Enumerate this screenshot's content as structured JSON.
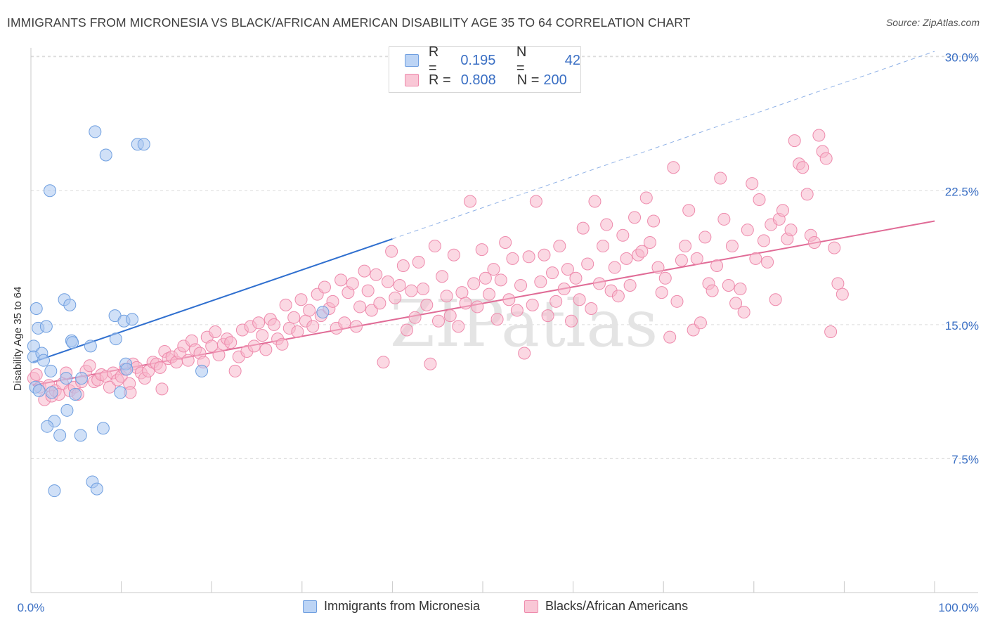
{
  "header": {
    "title": "IMMIGRANTS FROM MICRONESIA VS BLACK/AFRICAN AMERICAN DISABILITY AGE 35 TO 64 CORRELATION CHART",
    "source": "Source: ZipAtlas.com"
  },
  "watermark": "ZIPatlas",
  "legend": {
    "rows": [
      {
        "r_label": "R =",
        "r_value": "0.195",
        "n_label": "N =",
        "n_value": "42",
        "color": "#a9c7f0",
        "edge": "#6f9fe0"
      },
      {
        "r_label": "R =",
        "r_value": "0.808",
        "n_label": "N =",
        "n_value": "200",
        "color": "#f7b8cc",
        "edge": "#ee8aac"
      }
    ]
  },
  "chart_data": {
    "type": "scatter",
    "title": "IMMIGRANTS FROM MICRONESIA VS BLACK/AFRICAN AMERICAN DISABILITY AGE 35 TO 64 CORRELATION CHART",
    "xlabel": "",
    "ylabel": "Disability Age 35 to 64",
    "xlim": [
      0,
      100
    ],
    "ylim": [
      0,
      30.5
    ],
    "x_tick_labels": [
      "0.0%",
      "100.0%"
    ],
    "y_tick_labels": [
      "7.5%",
      "15.0%",
      "22.5%",
      "30.0%"
    ],
    "y_ticks": [
      7.5,
      15.0,
      22.5,
      30.0
    ],
    "grid": true,
    "legend_position": "bottom-center",
    "series": [
      {
        "name": "Immigrants from Micronesia",
        "color": "#a9c7f0",
        "edge": "#6f9fe0",
        "line_color": "#2f6fcf",
        "trend": {
          "x0": 0.2,
          "y0": 12.9,
          "x1": 40.0,
          "y1": 19.8,
          "ext_x1": 100.0,
          "ext_y1": 30.3
        },
        "points": [
          [
            0.3,
            13.8
          ],
          [
            0.3,
            13.2
          ],
          [
            0.6,
            15.9
          ],
          [
            0.8,
            14.8
          ],
          [
            0.5,
            11.5
          ],
          [
            1.2,
            13.4
          ],
          [
            1.4,
            13.0
          ],
          [
            1.7,
            14.9
          ],
          [
            2.1,
            22.5
          ],
          [
            2.2,
            12.4
          ],
          [
            2.6,
            9.6
          ],
          [
            1.8,
            9.3
          ],
          [
            3.7,
            16.4
          ],
          [
            4.3,
            16.1
          ],
          [
            3.2,
            8.8
          ],
          [
            4.0,
            10.2
          ],
          [
            3.9,
            12.0
          ],
          [
            4.5,
            14.1
          ],
          [
            4.6,
            14.0
          ],
          [
            5.5,
            8.8
          ],
          [
            4.9,
            11.1
          ],
          [
            5.6,
            12.0
          ],
          [
            6.6,
            13.8
          ],
          [
            6.8,
            6.2
          ],
          [
            7.3,
            5.8
          ],
          [
            8.0,
            9.2
          ],
          [
            8.3,
            24.5
          ],
          [
            7.1,
            25.8
          ],
          [
            9.3,
            15.5
          ],
          [
            9.4,
            14.2
          ],
          [
            10.3,
            15.2
          ],
          [
            10.5,
            12.8
          ],
          [
            10.6,
            12.5
          ],
          [
            9.9,
            11.2
          ],
          [
            11.2,
            15.3
          ],
          [
            11.8,
            25.1
          ],
          [
            12.5,
            25.1
          ],
          [
            2.6,
            5.7
          ],
          [
            18.9,
            12.4
          ],
          [
            32.3,
            15.7
          ],
          [
            0.9,
            11.3
          ],
          [
            2.3,
            11.2
          ]
        ]
      },
      {
        "name": "Blacks/African Americans",
        "color": "#f7b8cc",
        "edge": "#ee8aac",
        "line_color": "#e06b96",
        "trend": {
          "x0": 0.2,
          "y0": 11.6,
          "x1": 100.0,
          "y1": 20.8
        },
        "points": [
          [
            0.3,
            12.0
          ],
          [
            0.6,
            12.2
          ],
          [
            1.0,
            11.5
          ],
          [
            1.5,
            10.8
          ],
          [
            2.0,
            11.6
          ],
          [
            2.3,
            11.0
          ],
          [
            2.7,
            11.3
          ],
          [
            3.1,
            11.1
          ],
          [
            3.5,
            11.7
          ],
          [
            3.9,
            12.3
          ],
          [
            4.3,
            11.3
          ],
          [
            4.8,
            11.5
          ],
          [
            5.2,
            11.1
          ],
          [
            5.6,
            11.8
          ],
          [
            6.1,
            12.4
          ],
          [
            6.5,
            12.7
          ],
          [
            7.0,
            11.8
          ],
          [
            7.4,
            11.9
          ],
          [
            7.8,
            12.2
          ],
          [
            8.3,
            12.1
          ],
          [
            8.7,
            11.5
          ],
          [
            9.1,
            12.3
          ],
          [
            9.6,
            11.9
          ],
          [
            10.0,
            12.1
          ],
          [
            10.4,
            12.5
          ],
          [
            10.9,
            11.7
          ],
          [
            11.3,
            12.8
          ],
          [
            11.7,
            12.6
          ],
          [
            12.2,
            12.3
          ],
          [
            12.6,
            12.0
          ],
          [
            13.0,
            12.4
          ],
          [
            13.5,
            12.9
          ],
          [
            13.9,
            12.8
          ],
          [
            14.3,
            12.6
          ],
          [
            14.8,
            13.5
          ],
          [
            15.2,
            13.1
          ],
          [
            15.6,
            13.2
          ],
          [
            16.1,
            12.9
          ],
          [
            16.5,
            13.4
          ],
          [
            16.9,
            13.8
          ],
          [
            17.4,
            13.0
          ],
          [
            17.8,
            14.1
          ],
          [
            18.2,
            13.6
          ],
          [
            18.7,
            13.4
          ],
          [
            19.1,
            12.9
          ],
          [
            19.5,
            14.3
          ],
          [
            20.0,
            13.8
          ],
          [
            20.4,
            14.6
          ],
          [
            20.8,
            13.3
          ],
          [
            21.3,
            13.9
          ],
          [
            21.7,
            14.2
          ],
          [
            22.1,
            14.0
          ],
          [
            22.6,
            12.4
          ],
          [
            23.0,
            13.2
          ],
          [
            23.4,
            14.7
          ],
          [
            23.9,
            13.5
          ],
          [
            24.3,
            14.9
          ],
          [
            24.7,
            13.8
          ],
          [
            25.2,
            15.1
          ],
          [
            25.6,
            14.4
          ],
          [
            26.0,
            13.6
          ],
          [
            26.5,
            15.3
          ],
          [
            26.9,
            15.0
          ],
          [
            27.3,
            14.2
          ],
          [
            27.8,
            13.9
          ],
          [
            28.2,
            16.1
          ],
          [
            28.6,
            14.8
          ],
          [
            29.1,
            15.4
          ],
          [
            29.5,
            14.6
          ],
          [
            29.9,
            16.4
          ],
          [
            30.4,
            15.2
          ],
          [
            30.8,
            15.8
          ],
          [
            31.2,
            14.9
          ],
          [
            31.7,
            16.7
          ],
          [
            32.1,
            15.5
          ],
          [
            32.5,
            17.1
          ],
          [
            33.0,
            15.9
          ],
          [
            33.4,
            16.3
          ],
          [
            33.8,
            14.8
          ],
          [
            34.3,
            17.5
          ],
          [
            34.7,
            15.1
          ],
          [
            35.1,
            16.8
          ],
          [
            35.6,
            17.3
          ],
          [
            36.0,
            14.9
          ],
          [
            36.4,
            16.0
          ],
          [
            36.9,
            18.0
          ],
          [
            37.3,
            16.9
          ],
          [
            37.7,
            15.8
          ],
          [
            38.2,
            17.8
          ],
          [
            38.6,
            16.2
          ],
          [
            39.0,
            12.9
          ],
          [
            39.5,
            17.4
          ],
          [
            39.9,
            19.1
          ],
          [
            40.3,
            16.5
          ],
          [
            40.8,
            17.2
          ],
          [
            41.2,
            18.3
          ],
          [
            41.6,
            14.7
          ],
          [
            42.1,
            16.9
          ],
          [
            42.5,
            15.4
          ],
          [
            42.9,
            18.5
          ],
          [
            43.4,
            17.0
          ],
          [
            43.8,
            16.1
          ],
          [
            44.2,
            12.8
          ],
          [
            44.7,
            19.4
          ],
          [
            45.1,
            15.2
          ],
          [
            45.5,
            17.7
          ],
          [
            46.0,
            16.6
          ],
          [
            46.4,
            15.5
          ],
          [
            46.8,
            18.9
          ],
          [
            47.3,
            14.9
          ],
          [
            47.7,
            16.8
          ],
          [
            48.1,
            16.2
          ],
          [
            48.6,
            21.9
          ],
          [
            49.0,
            17.3
          ],
          [
            49.4,
            16.0
          ],
          [
            49.9,
            19.2
          ],
          [
            50.3,
            17.6
          ],
          [
            50.7,
            16.7
          ],
          [
            51.2,
            18.1
          ],
          [
            51.6,
            15.3
          ],
          [
            52.0,
            17.5
          ],
          [
            52.5,
            19.6
          ],
          [
            52.9,
            16.4
          ],
          [
            53.3,
            18.7
          ],
          [
            53.8,
            15.8
          ],
          [
            54.2,
            17.2
          ],
          [
            54.6,
            13.4
          ],
          [
            55.1,
            18.8
          ],
          [
            55.5,
            16.1
          ],
          [
            55.9,
            21.9
          ],
          [
            56.4,
            17.4
          ],
          [
            56.8,
            18.9
          ],
          [
            57.2,
            15.5
          ],
          [
            57.7,
            17.9
          ],
          [
            58.1,
            16.3
          ],
          [
            58.5,
            19.4
          ],
          [
            59.0,
            17.0
          ],
          [
            59.4,
            18.1
          ],
          [
            59.8,
            15.2
          ],
          [
            60.3,
            17.6
          ],
          [
            60.7,
            16.4
          ],
          [
            61.1,
            20.4
          ],
          [
            61.6,
            18.4
          ],
          [
            62.0,
            15.9
          ],
          [
            62.4,
            21.9
          ],
          [
            62.9,
            17.3
          ],
          [
            63.3,
            19.4
          ],
          [
            63.7,
            20.6
          ],
          [
            64.2,
            16.9
          ],
          [
            64.6,
            18.2
          ],
          [
            65.0,
            16.6
          ],
          [
            65.5,
            20.0
          ],
          [
            65.9,
            18.7
          ],
          [
            66.3,
            17.2
          ],
          [
            66.8,
            21.0
          ],
          [
            67.2,
            18.9
          ],
          [
            67.6,
            19.1
          ],
          [
            68.1,
            22.1
          ],
          [
            68.5,
            19.6
          ],
          [
            68.9,
            20.8
          ],
          [
            69.4,
            18.2
          ],
          [
            69.8,
            16.8
          ],
          [
            70.2,
            17.6
          ],
          [
            70.7,
            14.3
          ],
          [
            71.1,
            23.8
          ],
          [
            71.5,
            16.3
          ],
          [
            72.0,
            18.6
          ],
          [
            72.4,
            19.4
          ],
          [
            72.8,
            21.4
          ],
          [
            73.3,
            14.7
          ],
          [
            73.7,
            18.7
          ],
          [
            74.1,
            15.1
          ],
          [
            74.6,
            19.9
          ],
          [
            75.0,
            17.3
          ],
          [
            75.4,
            16.9
          ],
          [
            75.9,
            18.3
          ],
          [
            76.3,
            23.2
          ],
          [
            76.7,
            20.9
          ],
          [
            77.2,
            17.2
          ],
          [
            77.6,
            19.4
          ],
          [
            78.0,
            16.2
          ],
          [
            78.5,
            17.0
          ],
          [
            78.9,
            15.7
          ],
          [
            79.3,
            20.3
          ],
          [
            79.8,
            22.9
          ],
          [
            80.2,
            18.7
          ],
          [
            80.6,
            22.0
          ],
          [
            81.1,
            19.7
          ],
          [
            81.5,
            18.5
          ],
          [
            81.9,
            20.6
          ],
          [
            82.4,
            16.4
          ],
          [
            82.8,
            20.9
          ],
          [
            83.2,
            21.4
          ],
          [
            83.7,
            19.8
          ],
          [
            84.1,
            20.3
          ],
          [
            84.5,
            25.3
          ],
          [
            85.0,
            24.0
          ],
          [
            85.4,
            23.8
          ],
          [
            85.9,
            22.3
          ],
          [
            86.3,
            20.0
          ],
          [
            86.7,
            19.6
          ],
          [
            87.2,
            25.6
          ],
          [
            87.6,
            24.7
          ],
          [
            88.0,
            24.3
          ],
          [
            88.5,
            14.6
          ],
          [
            88.9,
            19.3
          ],
          [
            89.3,
            17.3
          ],
          [
            89.8,
            16.7
          ],
          [
            11.0,
            11.2
          ],
          [
            14.5,
            11.4
          ]
        ]
      }
    ]
  },
  "bottom_legend": {
    "items": [
      {
        "label": "Immigrants from Micronesia"
      },
      {
        "label": "Blacks/African Americans"
      }
    ]
  }
}
